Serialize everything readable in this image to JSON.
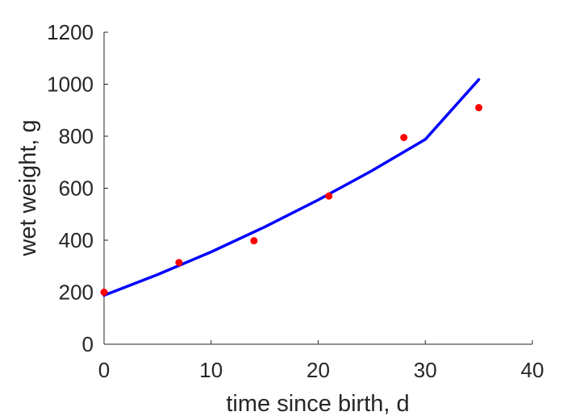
{
  "chart_data": {
    "type": "scatter",
    "title": "",
    "xlabel": "time since birth, d",
    "ylabel": "wet weight, g",
    "xlim": [
      0,
      40
    ],
    "ylim": [
      0,
      1200
    ],
    "xticks": [
      0,
      10,
      20,
      30,
      40
    ],
    "yticks": [
      0,
      200,
      400,
      600,
      800,
      1000,
      1200
    ],
    "grid": false,
    "legend": "none",
    "series": [
      {
        "kind": "points",
        "color": "#ff0000",
        "x": [
          0,
          7,
          14,
          21,
          28,
          35
        ],
        "y": [
          200,
          314,
          398,
          570,
          795,
          910
        ]
      },
      {
        "kind": "line",
        "color": "#0000ff",
        "x": [
          0,
          5,
          10,
          15,
          20,
          25,
          30,
          35
        ],
        "y": [
          188,
          268,
          355,
          451,
          555,
          667,
          788,
          1018
        ]
      }
    ]
  }
}
